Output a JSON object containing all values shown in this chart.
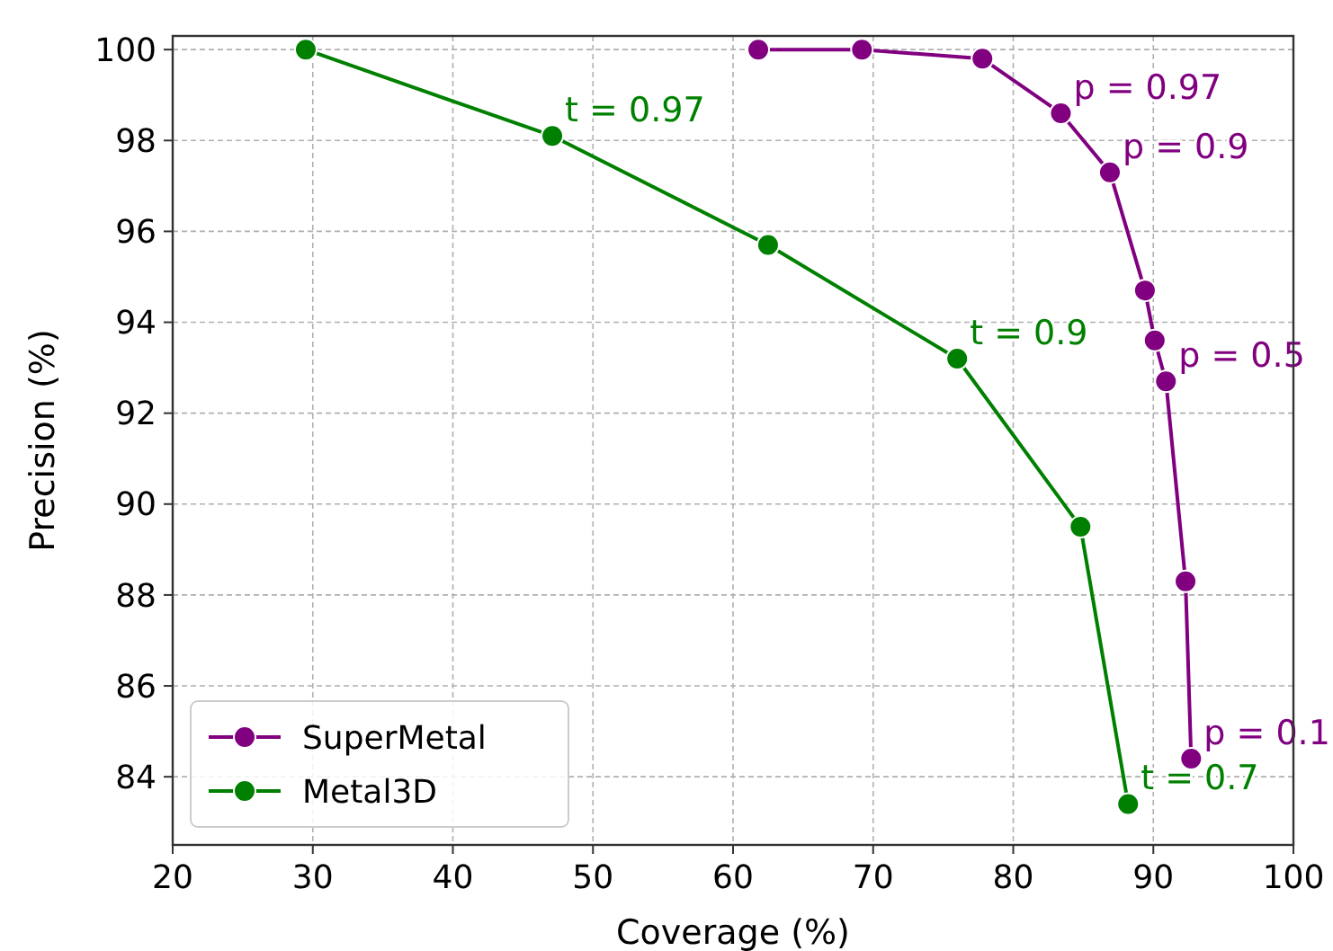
{
  "chart_data": {
    "type": "line",
    "xlabel": "Coverage (%)",
    "ylabel": "Precision (%)",
    "xlim": [
      20,
      100
    ],
    "ylim": [
      82.5,
      100.3
    ],
    "xticks": [
      20,
      30,
      40,
      50,
      60,
      70,
      80,
      90,
      100
    ],
    "yticks": [
      84,
      86,
      88,
      90,
      92,
      94,
      96,
      98,
      100
    ],
    "grid": true,
    "legend": "bottom left",
    "marker": "circle",
    "line_style": "solid",
    "series": [
      {
        "name": "SuperMetal",
        "color": "#800080",
        "x": [
          61.8,
          69.2,
          77.8,
          83.4,
          86.9,
          89.4,
          90.1,
          90.9,
          92.3,
          92.7
        ],
        "values": [
          100,
          100,
          99.8,
          98.6,
          97.3,
          94.7,
          93.6,
          92.7,
          88.3,
          84.4
        ]
      },
      {
        "name": "Metal3D",
        "color": "#008000",
        "x": [
          29.5,
          47.1,
          62.5,
          76.0,
          84.8,
          88.2
        ],
        "values": [
          100,
          98.1,
          95.7,
          93.2,
          89.5,
          83.4
        ]
      }
    ],
    "annotations": [
      {
        "text": "p = 0.97",
        "x": 83.4,
        "y": 98.6
      },
      {
        "text": "p = 0.9",
        "x": 86.9,
        "y": 97.3
      },
      {
        "text": "p = 0.5",
        "x": 90.9,
        "y": 92.7
      },
      {
        "text": "p = 0.1",
        "x": 92.7,
        "y": 84.4
      },
      {
        "text": "t = 0.97",
        "x": 47.1,
        "y": 98.1
      },
      {
        "text": "t = 0.9",
        "x": 76.0,
        "y": 93.2
      },
      {
        "text": "t = 0.7",
        "x": 88.2,
        "y": 83.4
      }
    ]
  }
}
